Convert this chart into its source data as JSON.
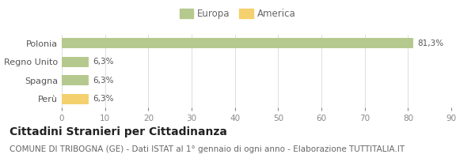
{
  "categories": [
    "Polonia",
    "Regno Unito",
    "Spagna",
    "Perù"
  ],
  "values": [
    81.3,
    6.3,
    6.3,
    6.3
  ],
  "bar_colors": [
    "#b5c98e",
    "#b5c98e",
    "#b5c98e",
    "#f5d06e"
  ],
  "labels": [
    "81,3%",
    "6,3%",
    "6,3%",
    "6,3%"
  ],
  "xlim": [
    0,
    90
  ],
  "xticks": [
    0,
    10,
    20,
    30,
    40,
    50,
    60,
    70,
    80,
    90
  ],
  "legend_items": [
    {
      "label": "Europa",
      "color": "#b5c98e"
    },
    {
      "label": "America",
      "color": "#f5d06e"
    }
  ],
  "title": "Cittadini Stranieri per Cittadinanza",
  "subtitle": "COMUNE DI TRIBOGNA (GE) - Dati ISTAT al 1° gennaio di ogni anno - Elaborazione TUTTITALIA.IT",
  "title_fontsize": 10,
  "subtitle_fontsize": 7.5,
  "background_color": "#ffffff",
  "grid_color": "#dddddd"
}
